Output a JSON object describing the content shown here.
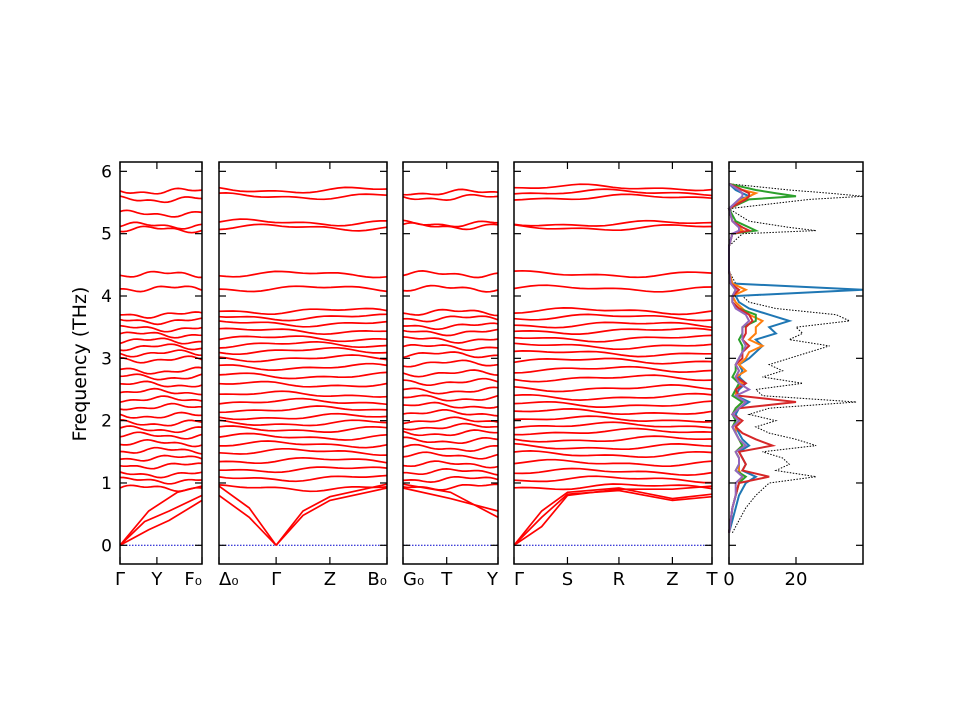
{
  "chart_data": {
    "type": "line",
    "ylabel": "Frequency (THz)",
    "ylim": [
      -0.3,
      6.15
    ],
    "yticks": [
      0,
      1,
      2,
      3,
      4,
      5,
      6
    ],
    "band_color": "#ff0000",
    "zero_line_color": "#0000cc",
    "panels": [
      {
        "id": "p1",
        "xticks": [
          {
            "pos": 0.0,
            "label": "Γ"
          },
          {
            "pos": 0.45,
            "label": "Y"
          },
          {
            "pos": 1.0,
            "label": "F₀"
          }
        ],
        "flat_bands": [
          0.92,
          1.04,
          1.14,
          1.28,
          1.4,
          1.52,
          1.64,
          1.76,
          1.86,
          1.96,
          2.08,
          2.22,
          2.34,
          2.46,
          2.58,
          2.7,
          2.8,
          2.98,
          3.08,
          3.18,
          3.28,
          3.38,
          3.48,
          3.6,
          3.7,
          4.12,
          4.35,
          5.07,
          5.13,
          5.32,
          5.55,
          5.68
        ],
        "acoustic": [
          {
            "points": [
              [
                0,
                0
              ],
              [
                0.35,
                0.55
              ],
              [
                0.7,
                0.85
              ],
              [
                1.0,
                0.95
              ]
            ]
          },
          {
            "points": [
              [
                0,
                0
              ],
              [
                0.3,
                0.38
              ],
              [
                0.6,
                0.55
              ],
              [
                1.0,
                0.8
              ]
            ]
          },
          {
            "points": [
              [
                0,
                0
              ],
              [
                0.35,
                0.25
              ],
              [
                0.6,
                0.4
              ],
              [
                1.0,
                0.72
              ]
            ]
          }
        ]
      },
      {
        "id": "p2",
        "xticks": [
          {
            "pos": 0.0,
            "label": "Δ₀"
          },
          {
            "pos": 0.34,
            "label": "Γ"
          },
          {
            "pos": 0.66,
            "label": "Z"
          },
          {
            "pos": 1.0,
            "label": "B₀"
          }
        ],
        "flat_bands": [
          0.92,
          1.08,
          1.22,
          1.36,
          1.5,
          1.62,
          1.74,
          1.86,
          1.96,
          2.06,
          2.18,
          2.3,
          2.42,
          2.58,
          2.72,
          2.86,
          3.0,
          3.12,
          3.22,
          3.32,
          3.44,
          3.56,
          3.66,
          3.76,
          4.12,
          4.35,
          5.1,
          5.18,
          5.6,
          5.7
        ],
        "acoustic": [
          {
            "points": [
              [
                0,
                0.95
              ],
              [
                0.18,
                0.6
              ],
              [
                0.34,
                0
              ]
            ]
          },
          {
            "points": [
              [
                0,
                0.8
              ],
              [
                0.18,
                0.45
              ],
              [
                0.34,
                0
              ]
            ]
          },
          {
            "points": [
              [
                0.34,
                0
              ],
              [
                0.5,
                0.55
              ],
              [
                0.66,
                0.78
              ],
              [
                1.0,
                0.98
              ]
            ]
          },
          {
            "points": [
              [
                0.34,
                0
              ],
              [
                0.5,
                0.48
              ],
              [
                0.66,
                0.72
              ],
              [
                1.0,
                0.92
              ]
            ]
          }
        ]
      },
      {
        "id": "p3",
        "xticks": [
          {
            "pos": 0.0,
            "label": "G₀"
          },
          {
            "pos": 0.46,
            "label": "T"
          },
          {
            "pos": 1.0,
            "label": "Y"
          }
        ],
        "flat_bands": [
          0.94,
          1.06,
          1.18,
          1.3,
          1.44,
          1.56,
          1.68,
          1.8,
          1.9,
          2.0,
          2.12,
          2.24,
          2.36,
          2.48,
          2.62,
          2.76,
          2.92,
          3.06,
          3.18,
          3.3,
          3.42,
          3.52,
          3.64,
          3.74,
          4.12,
          4.35,
          5.12,
          5.16,
          5.58,
          5.66
        ],
        "acoustic": [
          {
            "points": [
              [
                0,
                0.98
              ],
              [
                0.5,
                0.85
              ],
              [
                1.0,
                0.45
              ]
            ]
          },
          {
            "points": [
              [
                0,
                0.92
              ],
              [
                0.5,
                0.75
              ],
              [
                1.0,
                0.55
              ]
            ]
          }
        ]
      },
      {
        "id": "p4",
        "xticks": [
          {
            "pos": 0.0,
            "label": "Γ"
          },
          {
            "pos": 0.27,
            "label": "S"
          },
          {
            "pos": 0.53,
            "label": "R"
          },
          {
            "pos": 0.8,
            "label": "Z"
          },
          {
            "pos": 1.0,
            "label": "T"
          }
        ],
        "flat_bands": [
          0.94,
          1.06,
          1.18,
          1.32,
          1.46,
          1.58,
          1.7,
          1.82,
          1.92,
          2.02,
          2.14,
          2.26,
          2.38,
          2.52,
          2.68,
          2.82,
          2.96,
          3.08,
          3.2,
          3.32,
          3.44,
          3.54,
          3.66,
          3.76,
          4.12,
          4.35,
          5.1,
          5.16,
          5.58,
          5.66,
          5.74
        ],
        "acoustic": [
          {
            "points": [
              [
                0,
                0
              ],
              [
                0.14,
                0.55
              ],
              [
                0.27,
                0.85
              ],
              [
                0.53,
                0.92
              ],
              [
                0.8,
                0.75
              ],
              [
                1.0,
                0.82
              ]
            ]
          },
          {
            "points": [
              [
                0,
                0
              ],
              [
                0.14,
                0.45
              ],
              [
                0.27,
                0.82
              ],
              [
                0.53,
                0.88
              ],
              [
                0.8,
                0.72
              ],
              [
                1.0,
                0.78
              ]
            ]
          },
          {
            "points": [
              [
                0,
                0
              ],
              [
                0.14,
                0.3
              ],
              [
                0.27,
                0.8
              ],
              [
                0.53,
                0.9
              ],
              [
                0.8,
                0.9
              ],
              [
                1.0,
                0.95
              ]
            ]
          }
        ]
      }
    ],
    "dos": {
      "xlim": [
        0,
        40
      ],
      "xticks": [
        0,
        20
      ],
      "total_color": "#000000",
      "frequency_grid": [
        0.2,
        0.4,
        0.6,
        0.8,
        1.0,
        1.1,
        1.2,
        1.3,
        1.4,
        1.5,
        1.6,
        1.7,
        1.8,
        1.9,
        2.0,
        2.1,
        2.2,
        2.3,
        2.4,
        2.5,
        2.6,
        2.7,
        2.8,
        2.9,
        3.0,
        3.1,
        3.2,
        3.3,
        3.4,
        3.5,
        3.6,
        3.7,
        3.8,
        3.9,
        4.0,
        4.1,
        4.2,
        4.4,
        4.8,
        5.0,
        5.05,
        5.1,
        5.2,
        5.4,
        5.55,
        5.6,
        5.65,
        5.7,
        5.8
      ],
      "total": [
        1,
        3,
        5,
        8,
        12,
        26,
        14,
        18,
        16,
        10,
        26,
        20,
        12,
        8,
        14,
        6,
        12,
        38,
        10,
        8,
        22,
        10,
        16,
        12,
        18,
        24,
        30,
        18,
        22,
        20,
        36,
        32,
        14,
        6,
        4,
        40,
        2,
        0,
        0,
        4,
        26,
        18,
        6,
        0,
        24,
        40,
        30,
        18,
        0
      ],
      "partials": [
        {
          "color": "#1f77b4",
          "values": [
            0,
            1,
            2,
            3,
            5,
            8,
            4,
            5,
            4,
            3,
            6,
            4,
            3,
            2,
            3,
            2,
            3,
            6,
            2,
            3,
            5,
            3,
            4,
            3,
            6,
            8,
            10,
            8,
            14,
            12,
            18,
            12,
            6,
            3,
            2,
            40,
            1,
            0,
            0,
            1,
            4,
            3,
            1,
            0,
            3,
            6,
            4,
            2,
            0
          ]
        },
        {
          "color": "#ff7f0e",
          "values": [
            0,
            0.5,
            1,
            2,
            3,
            4,
            3,
            3,
            3,
            2,
            4,
            3,
            2,
            2,
            3,
            1,
            2,
            4,
            2,
            2,
            4,
            2,
            5,
            3,
            5,
            6,
            10,
            6,
            8,
            8,
            10,
            6,
            4,
            2,
            1,
            5,
            1,
            0,
            0,
            1,
            4,
            3,
            1,
            0,
            4,
            6,
            8,
            4,
            0
          ]
        },
        {
          "color": "#2ca02c",
          "values": [
            0,
            0.5,
            1,
            2,
            3,
            5,
            2,
            3,
            3,
            2,
            4,
            3,
            2,
            1,
            2,
            1,
            2,
            4,
            1,
            2,
            3,
            1,
            2,
            2,
            3,
            4,
            4,
            3,
            4,
            4,
            8,
            8,
            3,
            1,
            1,
            2,
            0.5,
            0,
            0,
            1,
            8,
            6,
            2,
            0,
            6,
            20,
            14,
            8,
            0
          ]
        },
        {
          "color": "#d62728",
          "values": [
            0,
            0.5,
            1,
            2,
            3,
            12,
            4,
            5,
            4,
            3,
            13,
            8,
            4,
            2,
            4,
            1,
            3,
            20,
            3,
            2,
            5,
            2,
            3,
            2,
            4,
            4,
            6,
            4,
            5,
            5,
            7,
            6,
            3,
            1,
            1,
            3,
            0.5,
            0,
            0,
            1,
            6,
            4,
            1,
            0,
            5,
            6,
            6,
            4,
            0
          ]
        },
        {
          "color": "#9467bd",
          "values": [
            0,
            0.5,
            1,
            2,
            2,
            4,
            2,
            3,
            3,
            2,
            5,
            3,
            2,
            1,
            3,
            1,
            3,
            5,
            2,
            6,
            3,
            2,
            3,
            2,
            3,
            4,
            5,
            4,
            4,
            4,
            6,
            5,
            2,
            1,
            1,
            2,
            0.5,
            0,
            0,
            1,
            3,
            3,
            1,
            0,
            3,
            4,
            4,
            3,
            0
          ]
        }
      ]
    }
  }
}
